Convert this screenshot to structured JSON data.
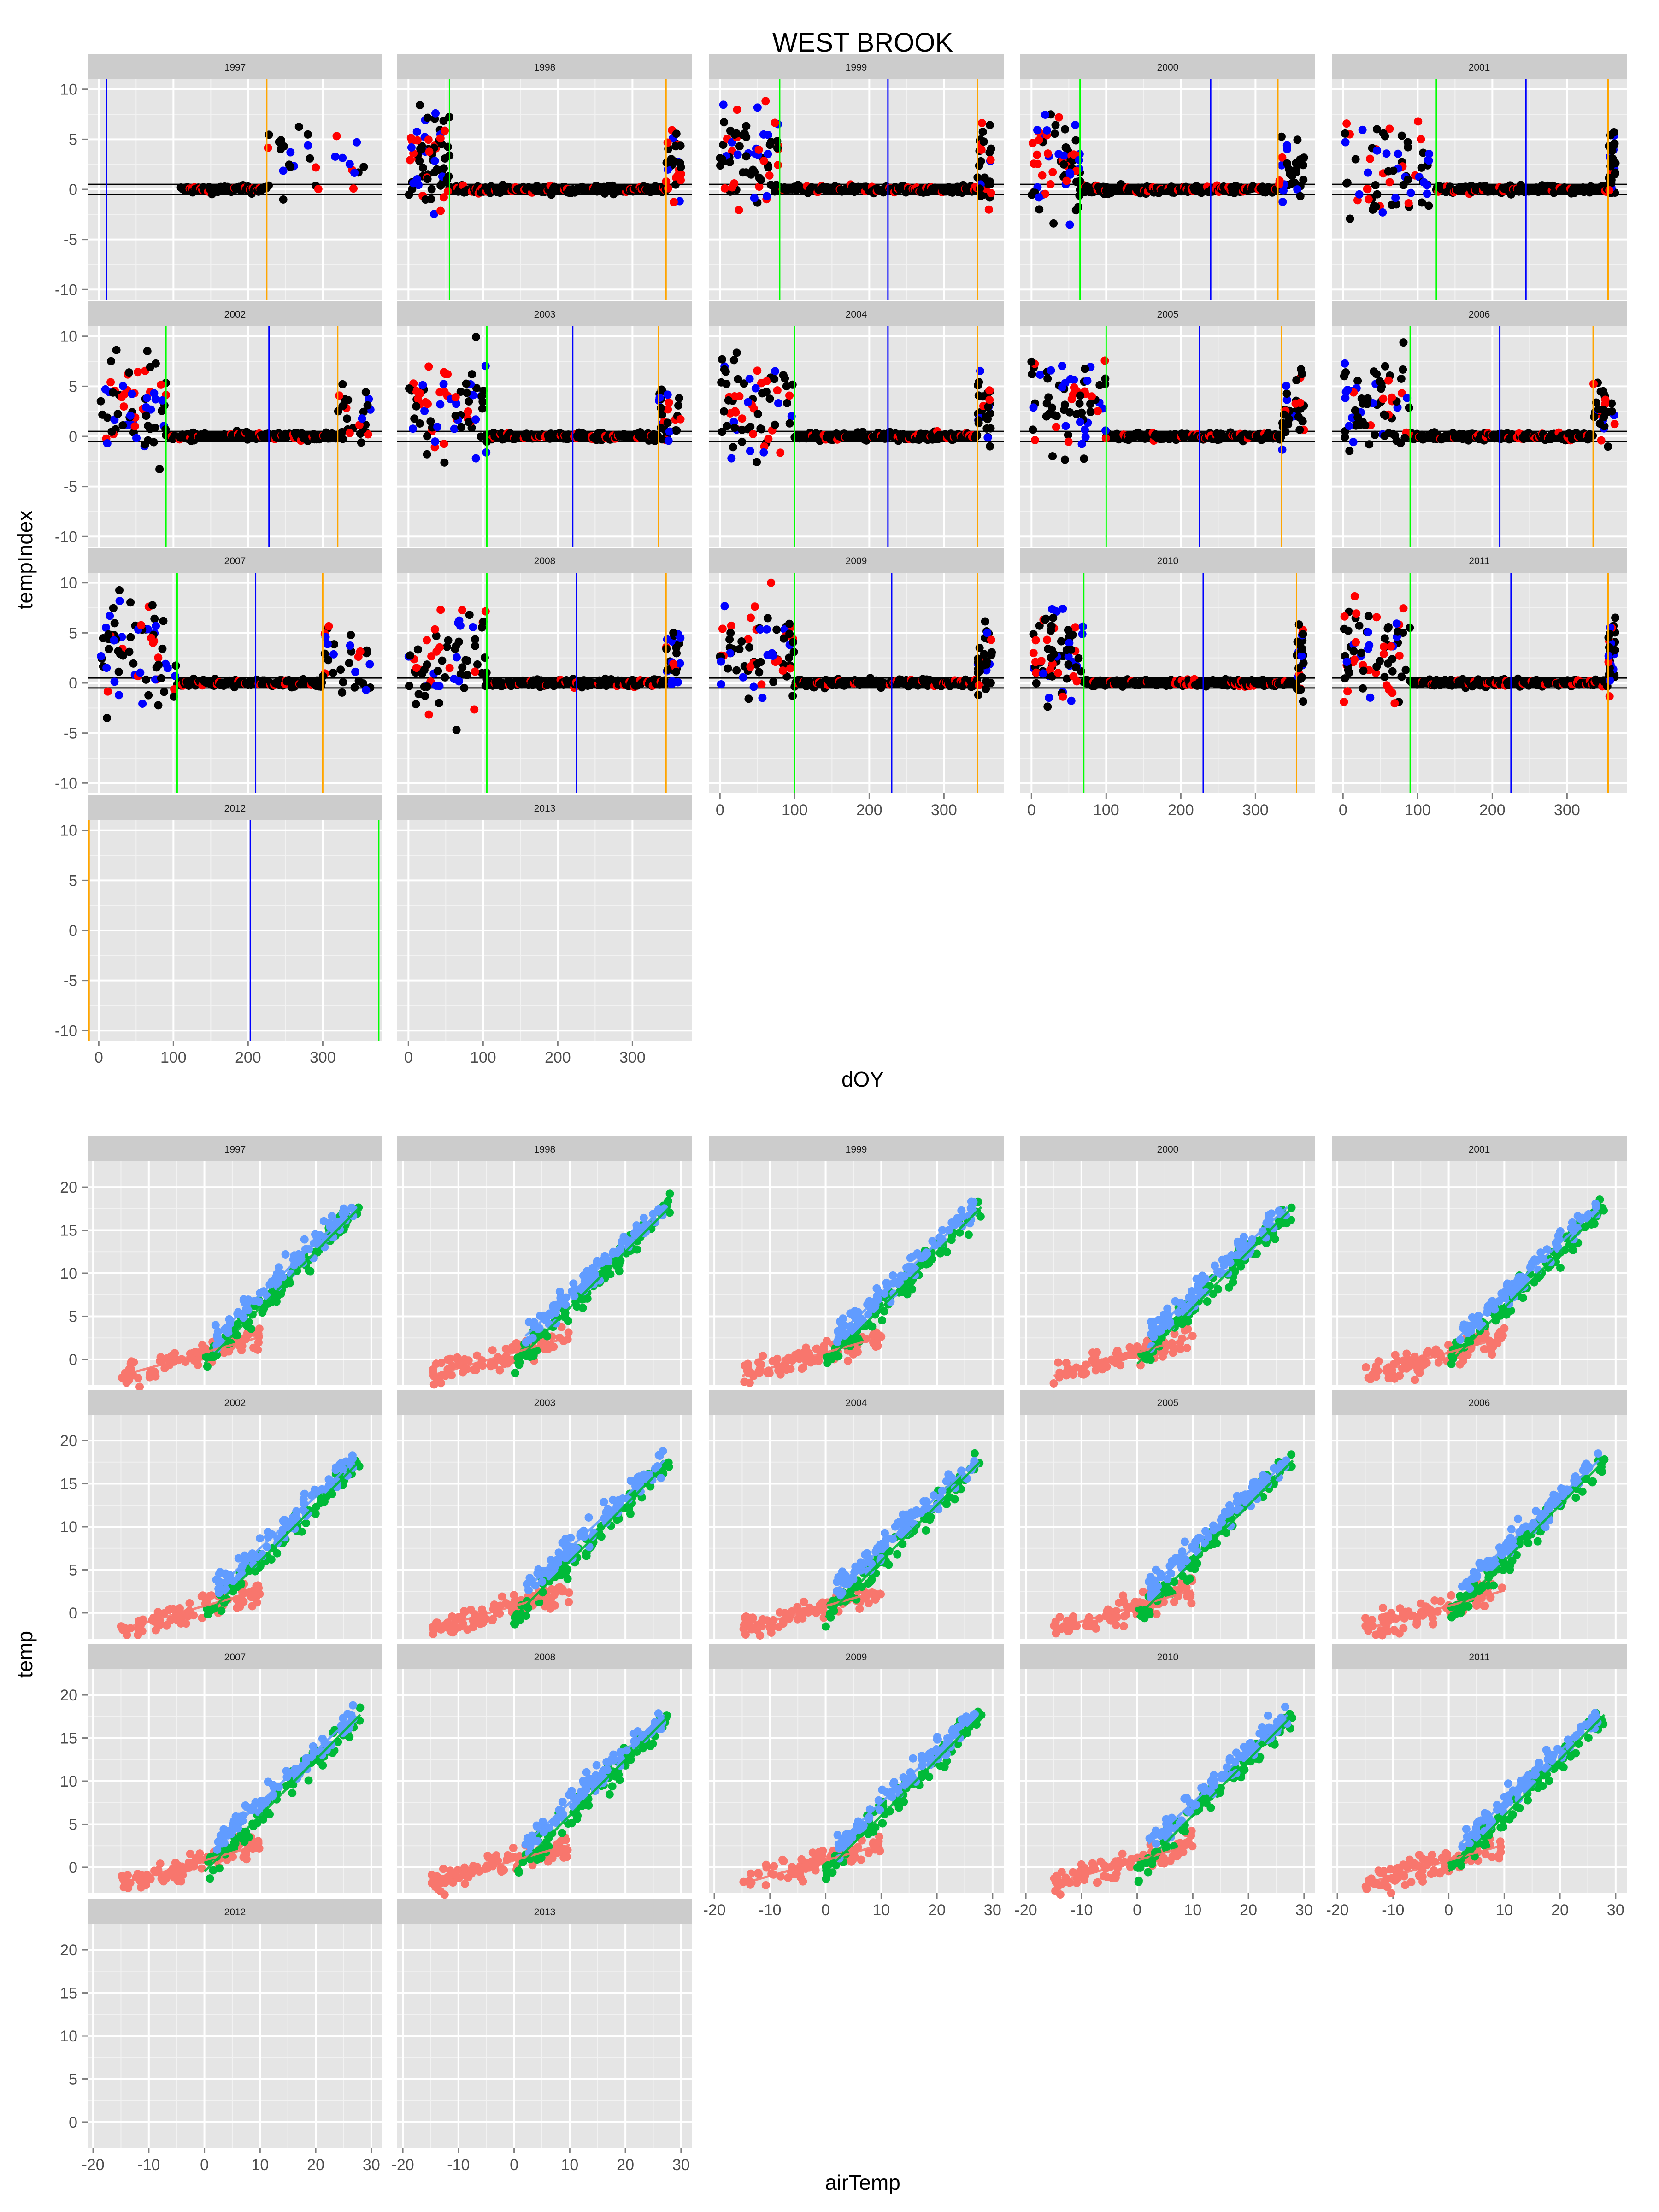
{
  "title": "WEST BROOK",
  "colors": {
    "panel_bg": "#E5E5E5",
    "strip_bg": "#CCCCCC",
    "grid_major": "#FFFFFF",
    "grid_minor": "#F2F2F2",
    "tick_text": "#4D4D4D",
    "axis_text": "#000000",
    "points_black": "#000000",
    "points_red": "#FF0000",
    "points_blue": "#0000FF",
    "line_green": "#00FF00",
    "line_blue": "#0000FF",
    "line_orange": "#FFA500",
    "season_red": "#F8766D",
    "season_green": "#00BA38",
    "season_blue": "#619CFF"
  },
  "chart_data": [
    {
      "type": "scatter",
      "title": "WEST BROOK",
      "xlabel": "dOY",
      "ylabel": "tempIndex",
      "xlim": [
        -15,
        380
      ],
      "ylim": [
        -11,
        11
      ],
      "x_ticks": [
        "0",
        "100",
        "200",
        "300"
      ],
      "y_ticks": [
        "10",
        "5",
        "0",
        "-5",
        "-10"
      ],
      "reference_hlines": [
        0.5,
        -0.5
      ],
      "grid": true,
      "facets": [
        {
          "label": "1997",
          "green": null,
          "blue": 10,
          "orange": 225,
          "start": 110,
          "end": 365
        },
        {
          "label": "1998",
          "green": 55,
          "blue": null,
          "orange": 345,
          "start": 0,
          "end": 365
        },
        {
          "label": "1999",
          "green": 80,
          "blue": 225,
          "orange": 345,
          "start": 0,
          "end": 365
        },
        {
          "label": "2000",
          "green": 65,
          "blue": 240,
          "orange": 330,
          "start": 0,
          "end": 365
        },
        {
          "label": "2001",
          "green": 125,
          "blue": 245,
          "orange": 355,
          "start": 0,
          "end": 365
        },
        {
          "label": "2002",
          "green": 90,
          "blue": 228,
          "orange": 320,
          "start": 0,
          "end": 365
        },
        {
          "label": "2003",
          "green": 105,
          "blue": 220,
          "orange": 335,
          "start": 0,
          "end": 365
        },
        {
          "label": "2004",
          "green": 100,
          "blue": 225,
          "orange": 345,
          "start": 0,
          "end": 365
        },
        {
          "label": "2005",
          "green": 100,
          "blue": 225,
          "orange": 335,
          "start": 0,
          "end": 365
        },
        {
          "label": "2006",
          "green": 90,
          "blue": 210,
          "orange": 335,
          "start": 0,
          "end": 365
        },
        {
          "label": "2007",
          "green": 105,
          "blue": 210,
          "orange": 300,
          "start": 0,
          "end": 365
        },
        {
          "label": "2008",
          "green": 105,
          "blue": 225,
          "orange": 345,
          "start": 0,
          "end": 365
        },
        {
          "label": "2009",
          "green": 100,
          "blue": 230,
          "orange": 345,
          "start": 0,
          "end": 365
        },
        {
          "label": "2010",
          "green": 70,
          "blue": 230,
          "orange": 355,
          "start": 0,
          "end": 365
        },
        {
          "label": "2011",
          "green": 90,
          "blue": 225,
          "orange": 355,
          "start": 0,
          "end": 365
        },
        {
          "label": "2012",
          "green": 375,
          "blue": 203,
          "orange": -13,
          "start": null,
          "end": null
        },
        {
          "label": "2013",
          "green": null,
          "blue": null,
          "orange": null,
          "start": null,
          "end": null
        }
      ]
    },
    {
      "type": "scatter",
      "xlabel": "airTemp",
      "ylabel": "temp",
      "xlim": [
        -21,
        32
      ],
      "ylim": [
        -3,
        23
      ],
      "x_ticks": [
        "-20",
        "-10",
        "0",
        "10",
        "20",
        "30"
      ],
      "y_ticks": [
        "20",
        "15",
        "10",
        "5",
        "0"
      ],
      "grid": true,
      "series": [
        {
          "color": "#F8766D",
          "x_range": [
            -15,
            10
          ],
          "fit": [
            0.18,
            0.8
          ]
        },
        {
          "color": "#00BA38",
          "x_range": [
            0,
            28
          ],
          "fit": [
            0.65,
            -0.5
          ]
        },
        {
          "color": "#619CFF",
          "x_range": [
            2,
            27
          ],
          "fit": [
            0.6,
            1.5
          ]
        }
      ],
      "facets": [
        {
          "label": "1997",
          "data": true
        },
        {
          "label": "1998",
          "data": true
        },
        {
          "label": "1999",
          "data": true
        },
        {
          "label": "2000",
          "data": true
        },
        {
          "label": "2001",
          "data": true
        },
        {
          "label": "2002",
          "data": true
        },
        {
          "label": "2003",
          "data": true
        },
        {
          "label": "2004",
          "data": true
        },
        {
          "label": "2005",
          "data": true
        },
        {
          "label": "2006",
          "data": true
        },
        {
          "label": "2007",
          "data": true
        },
        {
          "label": "2008",
          "data": true
        },
        {
          "label": "2009",
          "data": true
        },
        {
          "label": "2010",
          "data": true
        },
        {
          "label": "2011",
          "data": true
        },
        {
          "label": "2012",
          "data": false
        },
        {
          "label": "2013",
          "data": false
        }
      ]
    }
  ]
}
